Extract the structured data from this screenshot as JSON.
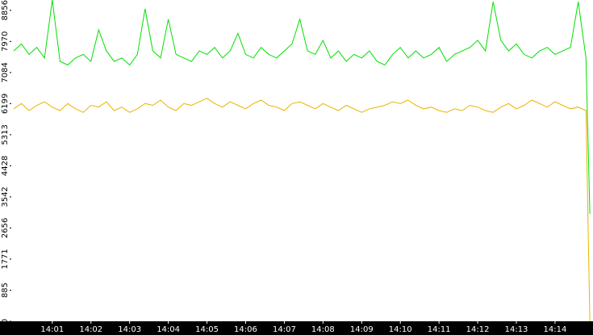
{
  "chart_data": {
    "type": "line",
    "x": [
      0,
      0.2,
      0.4,
      0.6,
      0.8,
      1.0,
      1.2,
      1.4,
      1.6,
      1.8,
      2.0,
      2.2,
      2.4,
      2.6,
      2.8,
      3.0,
      3.2,
      3.4,
      3.6,
      3.8,
      4.0,
      4.2,
      4.4,
      4.6,
      4.8,
      5.0,
      5.2,
      5.4,
      5.6,
      5.8,
      6.0,
      6.2,
      6.4,
      6.6,
      6.8,
      7.0,
      7.2,
      7.4,
      7.6,
      7.8,
      8.0,
      8.2,
      8.4,
      8.6,
      8.8,
      9.0,
      9.2,
      9.4,
      9.6,
      9.8,
      10.0,
      10.2,
      10.4,
      10.6,
      10.8,
      11.0,
      11.2,
      11.4,
      11.6,
      11.8,
      12.0,
      12.2,
      12.4,
      12.6,
      12.8,
      13.0,
      13.2,
      13.4,
      13.6,
      13.8,
      14.0,
      14.2,
      14.4,
      14.6,
      14.8,
      14.9
    ],
    "series": [
      {
        "color": "#00e000",
        "values": [
          7700,
          7900,
          7600,
          7800,
          7500,
          9150,
          7400,
          7300,
          7500,
          7600,
          7400,
          8300,
          7700,
          7400,
          7500,
          7300,
          7600,
          8900,
          7700,
          7500,
          8600,
          7600,
          7500,
          7400,
          7700,
          7600,
          7800,
          7500,
          7700,
          8200,
          7600,
          7500,
          7800,
          7600,
          7500,
          7700,
          7900,
          8600,
          7700,
          7600,
          8000,
          7500,
          7700,
          7400,
          7600,
          7500,
          7700,
          7400,
          7300,
          7600,
          7800,
          7500,
          7700,
          7500,
          7600,
          7800,
          7400,
          7600,
          7700,
          7800,
          8000,
          7700,
          9100,
          8000,
          7700,
          7900,
          7600,
          7500,
          7700,
          7800,
          7600,
          7700,
          7800,
          9100,
          7500,
          3060
        ]
      },
      {
        "color": "#e8b400",
        "values": [
          6050,
          6200,
          6000,
          6150,
          6250,
          6100,
          6000,
          6200,
          6050,
          5950,
          6150,
          6100,
          6250,
          6000,
          6100,
          5950,
          6050,
          6200,
          6150,
          6300,
          6100,
          6000,
          6200,
          6150,
          6250,
          6350,
          6200,
          6100,
          6250,
          6150,
          6050,
          6200,
          6300,
          6150,
          6100,
          6000,
          6200,
          6250,
          6150,
          6050,
          6200,
          6100,
          6000,
          6150,
          6050,
          5950,
          6050,
          6100,
          6150,
          6250,
          6200,
          6300,
          6150,
          6050,
          6100,
          6000,
          5950,
          6050,
          6000,
          6150,
          6100,
          6000,
          5950,
          6100,
          6200,
          6050,
          6150,
          6300,
          6200,
          6100,
          6250,
          6150,
          6050,
          6100,
          6000,
          0
        ]
      }
    ],
    "ylim": [
      0,
      9150
    ],
    "yticks": [
      0,
      885,
      1771,
      2656,
      3542,
      4428,
      5313,
      6199,
      7084,
      7970,
      8856
    ],
    "xlim": [
      -0.06,
      14.94
    ],
    "xticks": [
      {
        "value": 1,
        "label": "14:01"
      },
      {
        "value": 2,
        "label": "14:02"
      },
      {
        "value": 3,
        "label": "14:03"
      },
      {
        "value": 4,
        "label": "14:04"
      },
      {
        "value": 5,
        "label": "14:05"
      },
      {
        "value": 6,
        "label": "14:06"
      },
      {
        "value": 7,
        "label": "14:07"
      },
      {
        "value": 8,
        "label": "14:08"
      },
      {
        "value": 9,
        "label": "14:09"
      },
      {
        "value": 10,
        "label": "14:10"
      },
      {
        "value": 11,
        "label": "14:11"
      },
      {
        "value": 12,
        "label": "14:12"
      },
      {
        "value": 13,
        "label": "14:13"
      },
      {
        "value": 14,
        "label": "14:14"
      }
    ]
  }
}
